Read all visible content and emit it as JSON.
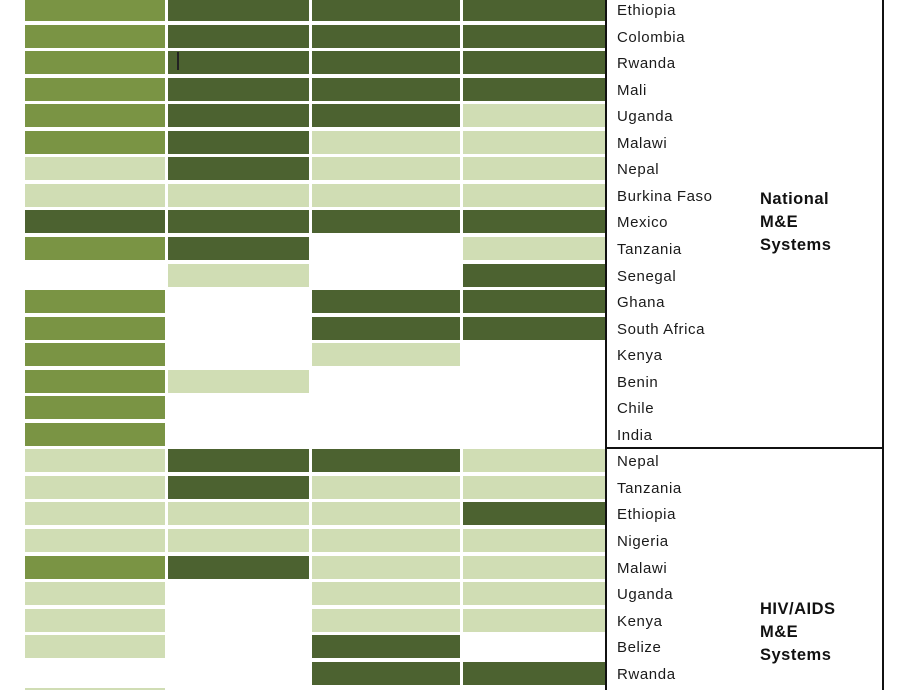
{
  "colors": {
    "dark": "#4c6230",
    "medium": "#7a9444",
    "light": "#d0ddb4",
    "none": "#ffffff"
  },
  "groups": [
    {
      "name_lines": [
        "National",
        "M&E",
        "Systems"
      ]
    },
    {
      "name_lines": [
        "HIV/AIDS",
        "M&E",
        "Systems"
      ]
    }
  ],
  "chart_data": {
    "type": "heatmap",
    "legend": {
      "D": "dark",
      "M": "medium",
      "L": "light",
      "N": "none"
    },
    "rows": [
      {
        "group": 0,
        "country": "Ethiopia",
        "cells": [
          "M",
          "D",
          "D",
          "D"
        ]
      },
      {
        "group": 0,
        "country": "Colombia",
        "cells": [
          "M",
          "D",
          "D",
          "D"
        ]
      },
      {
        "group": 0,
        "country": "Rwanda",
        "cells": [
          "M",
          "D",
          "D",
          "D"
        ]
      },
      {
        "group": 0,
        "country": "Mali",
        "cells": [
          "M",
          "D",
          "D",
          "D"
        ]
      },
      {
        "group": 0,
        "country": "Uganda",
        "cells": [
          "M",
          "D",
          "D",
          "L"
        ]
      },
      {
        "group": 0,
        "country": "Malawi",
        "cells": [
          "M",
          "D",
          "L",
          "L"
        ]
      },
      {
        "group": 0,
        "country": "Nepal",
        "cells": [
          "L",
          "D",
          "L",
          "L"
        ]
      },
      {
        "group": 0,
        "country": "Burkina Faso",
        "cells": [
          "L",
          "L",
          "L",
          "L"
        ]
      },
      {
        "group": 0,
        "country": "Mexico",
        "cells": [
          "D",
          "D",
          "D",
          "D"
        ]
      },
      {
        "group": 0,
        "country": "Tanzania",
        "cells": [
          "M",
          "D",
          "N",
          "L"
        ]
      },
      {
        "group": 0,
        "country": "Senegal",
        "cells": [
          "N",
          "L",
          "N",
          "D"
        ]
      },
      {
        "group": 0,
        "country": "Ghana",
        "cells": [
          "M",
          "N",
          "D",
          "D"
        ]
      },
      {
        "group": 0,
        "country": "South Africa",
        "cells": [
          "M",
          "N",
          "D",
          "D"
        ]
      },
      {
        "group": 0,
        "country": "Kenya",
        "cells": [
          "M",
          "N",
          "L",
          "N"
        ]
      },
      {
        "group": 0,
        "country": "Benin",
        "cells": [
          "M",
          "L",
          "N",
          "N"
        ]
      },
      {
        "group": 0,
        "country": "Chile",
        "cells": [
          "M",
          "N",
          "N",
          "N"
        ]
      },
      {
        "group": 0,
        "country": "India",
        "cells": [
          "M",
          "N",
          "N",
          "N"
        ]
      },
      {
        "group": 1,
        "country": "Nepal",
        "cells": [
          "L",
          "D",
          "D",
          "L"
        ]
      },
      {
        "group": 1,
        "country": "Tanzania",
        "cells": [
          "L",
          "D",
          "L",
          "L"
        ]
      },
      {
        "group": 1,
        "country": "Ethiopia",
        "cells": [
          "L",
          "L",
          "L",
          "D"
        ]
      },
      {
        "group": 1,
        "country": "Nigeria",
        "cells": [
          "L",
          "L",
          "L",
          "L"
        ]
      },
      {
        "group": 1,
        "country": "Malawi",
        "cells": [
          "M",
          "D",
          "L",
          "L"
        ]
      },
      {
        "group": 1,
        "country": "Uganda",
        "cells": [
          "L",
          "N",
          "L",
          "L"
        ]
      },
      {
        "group": 1,
        "country": "Kenya",
        "cells": [
          "L",
          "N",
          "L",
          "L"
        ]
      },
      {
        "group": 1,
        "country": "Belize",
        "cells": [
          "L",
          "N",
          "D",
          "N"
        ]
      },
      {
        "group": 1,
        "country": "Rwanda",
        "cells": [
          "N",
          "N",
          "D",
          "D"
        ]
      }
    ]
  }
}
